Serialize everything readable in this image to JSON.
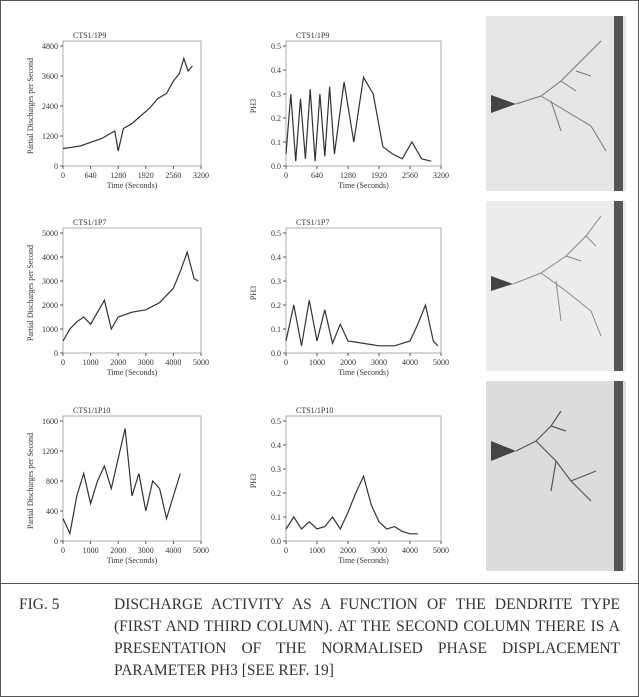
{
  "chart_data": [
    {
      "type": "line",
      "title": "CTS1/1P9",
      "y_label": "Partial Discharges per Second",
      "x_label": "Time (Seconds)",
      "x": [
        0,
        200,
        400,
        640,
        900,
        1100,
        1200,
        1280,
        1400,
        1600,
        1800,
        2000,
        2200,
        2400,
        2560,
        2700,
        2800,
        2900,
        3000
      ],
      "values": [
        700,
        750,
        800,
        950,
        1100,
        1300,
        1400,
        600,
        1500,
        1700,
        2000,
        2300,
        2700,
        2900,
        3400,
        3700,
        4300,
        3800,
        4000
      ],
      "xlim": [
        0,
        3200
      ],
      "xticks": [
        0,
        640,
        1280,
        1920,
        2560,
        3200
      ],
      "ylim": [
        0,
        4800
      ],
      "yticks": [
        0,
        1200,
        2400,
        3600,
        4800
      ],
      "color": "#333333"
    },
    {
      "type": "line",
      "title": "CTS1/1P9",
      "y_label": "PH3",
      "x_label": "Time (Seconds)",
      "x": [
        0,
        100,
        200,
        300,
        400,
        500,
        600,
        700,
        800,
        900,
        1000,
        1200,
        1400,
        1600,
        1800,
        2000,
        2200,
        2400,
        2600,
        2800,
        3000
      ],
      "values": [
        0.05,
        0.3,
        0.02,
        0.28,
        0.03,
        0.32,
        0.02,
        0.3,
        0.04,
        0.33,
        0.05,
        0.35,
        0.1,
        0.37,
        0.3,
        0.08,
        0.05,
        0.03,
        0.1,
        0.03,
        0.02
      ],
      "xlim": [
        0,
        3200
      ],
      "xticks": [
        0,
        640,
        1280,
        1920,
        2560,
        3200
      ],
      "ylim": [
        0,
        0.5
      ],
      "yticks": [
        {
          "value": 0,
          "label": "0.0"
        },
        0.1,
        0.2,
        0.3,
        0.4,
        0.5
      ],
      "color": "#333333"
    },
    {
      "type": "line",
      "title": "CTS1/1P7",
      "y_label": "Partial Discharges per Second",
      "x_label": "Time (Seconds)",
      "x": [
        0,
        250,
        500,
        750,
        1000,
        1250,
        1500,
        1750,
        2000,
        2500,
        3000,
        3500,
        4000,
        4250,
        4500,
        4750,
        4900
      ],
      "values": [
        500,
        1000,
        1300,
        1500,
        1200,
        1700,
        2200,
        1000,
        1500,
        1700,
        1800,
        2100,
        2700,
        3400,
        4200,
        3100,
        3000
      ],
      "xlim": [
        0,
        5000
      ],
      "xticks": [
        0,
        1000,
        2000,
        3000,
        4000,
        5000
      ],
      "ylim": [
        0,
        5000
      ],
      "yticks": [
        0,
        1000,
        2000,
        3000,
        4000,
        5000
      ],
      "color": "#333333"
    },
    {
      "type": "line",
      "title": "CTS1/1P7",
      "y_label": "PH3",
      "x_label": "Time (Seconds)",
      "x": [
        0,
        250,
        500,
        750,
        1000,
        1250,
        1500,
        1750,
        2000,
        2500,
        3000,
        3500,
        4000,
        4250,
        4500,
        4750,
        4900
      ],
      "values": [
        0.05,
        0.2,
        0.03,
        0.22,
        0.05,
        0.18,
        0.04,
        0.12,
        0.05,
        0.04,
        0.03,
        0.03,
        0.05,
        0.12,
        0.2,
        0.05,
        0.03
      ],
      "xlim": [
        0,
        5000
      ],
      "xticks": [
        0,
        1000,
        2000,
        3000,
        4000,
        5000
      ],
      "ylim": [
        0,
        0.5
      ],
      "yticks": [
        {
          "value": 0,
          "label": "0.0"
        },
        0.1,
        0.2,
        0.3,
        0.4,
        0.5
      ],
      "color": "#333333"
    },
    {
      "type": "line",
      "title": "CTS1/1P10",
      "y_label": "Partial Discharges per Second",
      "x_label": "Time (Seconds)",
      "x": [
        0,
        250,
        500,
        750,
        1000,
        1250,
        1500,
        1750,
        2000,
        2250,
        2500,
        2750,
        3000,
        3250,
        3500,
        3750,
        4000,
        4250
      ],
      "values": [
        300,
        100,
        600,
        900,
        500,
        800,
        1000,
        700,
        1100,
        1500,
        600,
        900,
        400,
        800,
        700,
        300,
        600,
        900
      ],
      "xlim": [
        0,
        5000
      ],
      "xticks": [
        0,
        1000,
        2000,
        3000,
        4000,
        5000
      ],
      "ylim": [
        0,
        1600
      ],
      "yticks": [
        0,
        400,
        800,
        1200,
        1600
      ],
      "color": "#333333"
    },
    {
      "type": "line",
      "title": "CTS1/1P10",
      "y_label": "PH3",
      "x_label": "Time (Seconds)",
      "x": [
        0,
        250,
        500,
        750,
        1000,
        1250,
        1500,
        1750,
        2000,
        2250,
        2500,
        2750,
        3000,
        3250,
        3500,
        3750,
        4000,
        4250
      ],
      "values": [
        0.05,
        0.1,
        0.05,
        0.08,
        0.05,
        0.06,
        0.1,
        0.05,
        0.12,
        0.2,
        0.27,
        0.15,
        0.08,
        0.05,
        0.06,
        0.04,
        0.03,
        0.03
      ],
      "xlim": [
        0,
        5000
      ],
      "xticks": [
        0,
        1000,
        2000,
        3000,
        4000,
        5000
      ],
      "ylim": [
        0,
        0.5
      ],
      "yticks": [
        {
          "value": 0,
          "label": "0.0"
        },
        0.1,
        0.2,
        0.3,
        0.4,
        0.5
      ],
      "color": "#333333"
    }
  ],
  "caption": {
    "label": "FIG. 5",
    "text": "DISCHARGE ACTIVITY AS A FUNCTION OF THE DENDRITE TYPE (FIRST AND THIRD COLUMN). AT THE SECOND COLUMN THERE IS A PRESENTATION OF THE NORMALISED PHASE DISPLACEMENT PARAMETER PH3 [SEE REF. 19]"
  }
}
